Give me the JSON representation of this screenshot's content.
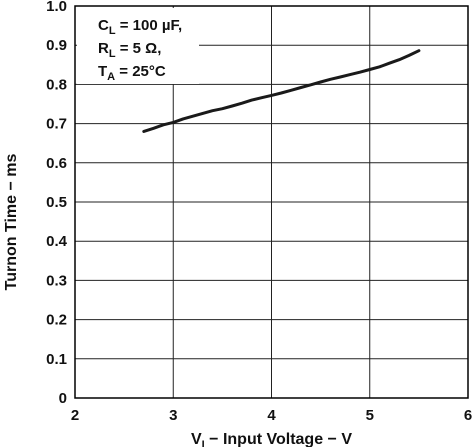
{
  "chart_data": {
    "type": "line",
    "xlabel": {
      "main": "V",
      "sub": "I",
      "rest": " − Input Voltage − V"
    },
    "ylabel": "Turnon Time − ms",
    "xlim": [
      2,
      6
    ],
    "ylim": [
      0,
      1.0
    ],
    "xticks": [
      "2",
      "3",
      "4",
      "5",
      "6"
    ],
    "yticks": [
      "0",
      "0.1",
      "0.2",
      "0.3",
      "0.4",
      "0.5",
      "0.6",
      "0.7",
      "0.8",
      "0.9",
      "1.0"
    ],
    "grid": true,
    "annotations": [
      {
        "main": "C",
        "sub": "L",
        "rest": " = 100 µF,"
      },
      {
        "main": "R",
        "sub": "L",
        "rest": " = 5 Ω,"
      },
      {
        "main": "T",
        "sub": "A",
        "rest": " = 25°C"
      }
    ],
    "series": [
      {
        "x": [
          2.7,
          2.8,
          2.9,
          3.0,
          3.1,
          3.2,
          3.3,
          3.4,
          3.5,
          3.6,
          3.7,
          3.8,
          3.9,
          4.0,
          4.1,
          4.2,
          4.3,
          4.4,
          4.5,
          4.6,
          4.7,
          4.8,
          4.9,
          5.0,
          5.1,
          5.2,
          5.3,
          5.4,
          5.5
        ],
        "y": [
          0.68,
          0.688,
          0.697,
          0.703,
          0.712,
          0.719,
          0.726,
          0.733,
          0.738,
          0.745,
          0.752,
          0.76,
          0.766,
          0.772,
          0.778,
          0.785,
          0.792,
          0.799,
          0.806,
          0.813,
          0.819,
          0.825,
          0.831,
          0.838,
          0.845,
          0.854,
          0.863,
          0.874,
          0.886
        ]
      }
    ]
  }
}
